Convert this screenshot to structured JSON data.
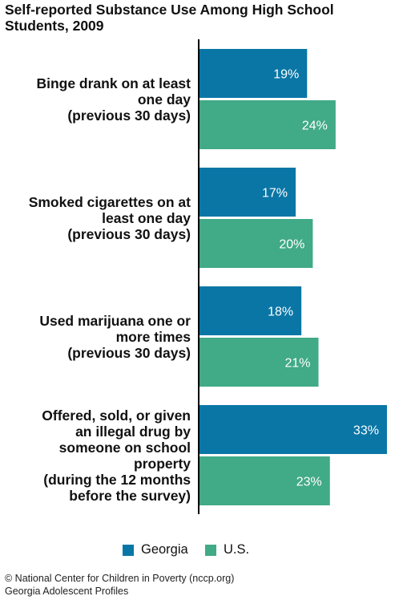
{
  "title_lines": [
    "Self-reported Substance Use Among High School",
    "Students, 2009"
  ],
  "colors": {
    "georgia": "#0a76a6",
    "us": "#41aa86",
    "axis": "#000000",
    "bar_text": "#ffffff"
  },
  "legend": [
    {
      "label": "Georgia",
      "color": "#0a76a6"
    },
    {
      "label": "U.S.",
      "color": "#41aa86"
    }
  ],
  "footer": {
    "line1": "© National Center for Children in Poverty (nccp.org)",
    "line2": "Georgia Adolescent Profiles"
  },
  "chart_data": {
    "type": "bar",
    "orientation": "horizontal",
    "categories": [
      [
        "Binge drank on at least",
        "one day",
        "(previous 30 days)"
      ],
      [
        "Smoked cigarettes on at",
        "least one day",
        "(previous 30 days)"
      ],
      [
        "Used marijuana one or",
        "more times",
        "(previous 30 days)"
      ],
      [
        "Offered, sold, or given",
        "an illegal drug by",
        "someone on school",
        "property",
        "(during the 12 months",
        "before the survey)"
      ]
    ],
    "series": [
      {
        "name": "Georgia",
        "values": [
          19,
          17,
          18,
          33
        ],
        "labels": [
          "19%",
          "17%",
          "18%",
          "33%"
        ]
      },
      {
        "name": "U.S.",
        "values": [
          24,
          20,
          21,
          23
        ],
        "labels": [
          "24%",
          "20%",
          "21%",
          "23%"
        ]
      }
    ],
    "value_unit": "%",
    "xlim": [
      0,
      33
    ]
  }
}
